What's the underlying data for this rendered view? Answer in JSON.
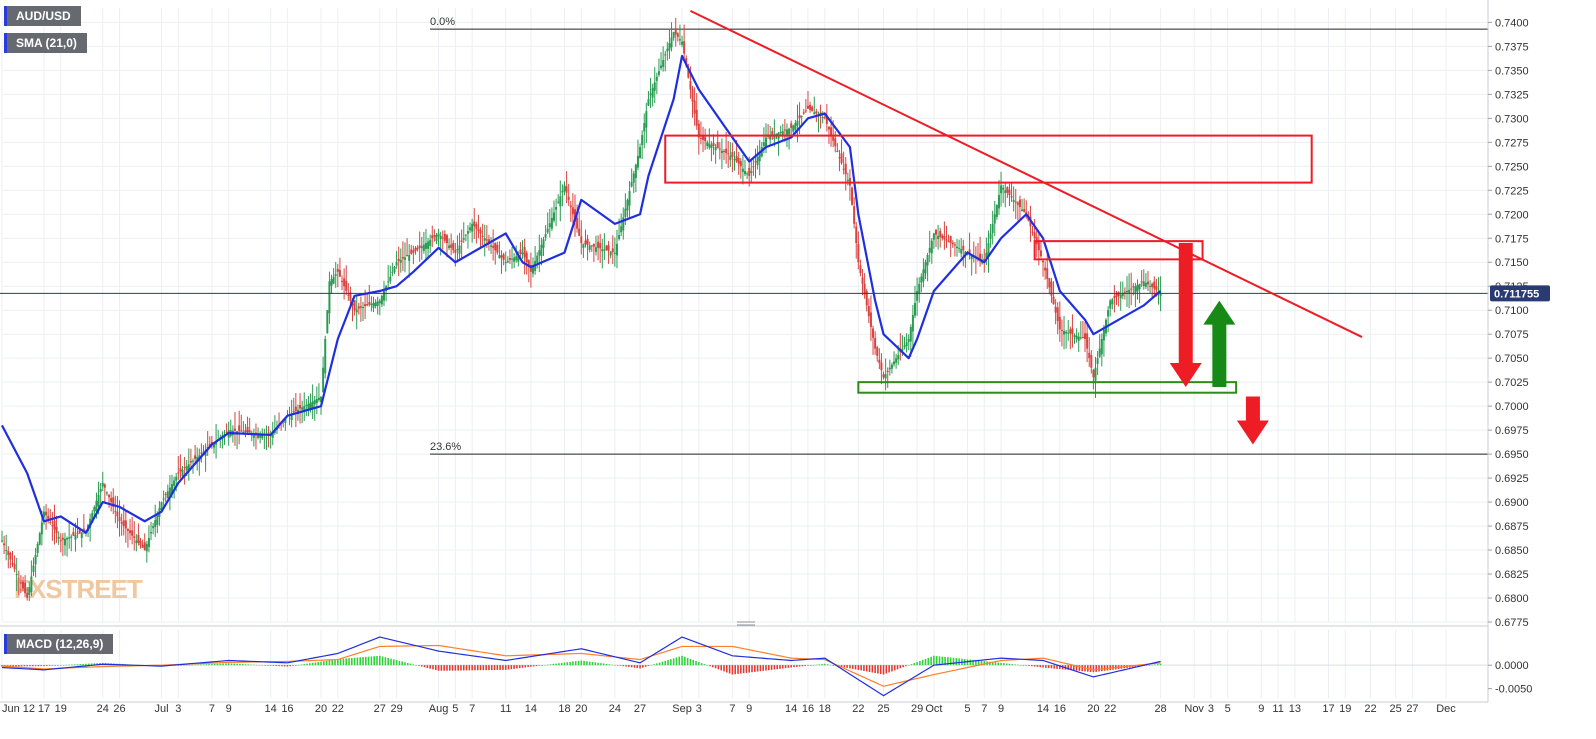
{
  "chart_data": {
    "type": "candlestick",
    "symbol": "AUD/USD",
    "indicator_label": "SMA (21,0)",
    "macd_label": "MACD (12,26,9)",
    "watermark": "FXSTREET",
    "current_price": "0.711755",
    "y_axis": {
      "range": [
        0.6775,
        0.7415
      ],
      "ticks": [
        "0.7400",
        "0.7375",
        "0.7350",
        "0.7325",
        "0.7300",
        "0.7275",
        "0.7250",
        "0.7225",
        "0.7200",
        "0.7175",
        "0.7150",
        "0.7125",
        "0.7100",
        "0.7075",
        "0.7050",
        "0.7025",
        "0.7000",
        "0.6975",
        "0.6950",
        "0.6925",
        "0.6900",
        "0.6875",
        "0.6850",
        "0.6825",
        "0.6800",
        "0.6775"
      ]
    },
    "macd_axis": {
      "range": [
        -0.007,
        0.0075
      ],
      "ticks": [
        {
          "label": "0.0000",
          "value": 0.0
        },
        {
          "label": "-0.0050",
          "value": -0.005
        }
      ]
    },
    "x_axis": {
      "start": "2020-06-12",
      "end": "2020-12-06",
      "labels": [
        {
          "text": "Jun 12",
          "date": "2020-06-12"
        },
        {
          "text": "17",
          "date": "2020-06-17"
        },
        {
          "text": "19",
          "date": "2020-06-19"
        },
        {
          "text": "24",
          "date": "2020-06-24"
        },
        {
          "text": "26",
          "date": "2020-06-26"
        },
        {
          "text": "Jul",
          "date": "2020-07-01"
        },
        {
          "text": "3",
          "date": "2020-07-03"
        },
        {
          "text": "7",
          "date": "2020-07-07"
        },
        {
          "text": "9",
          "date": "2020-07-09"
        },
        {
          "text": "14",
          "date": "2020-07-14"
        },
        {
          "text": "16",
          "date": "2020-07-16"
        },
        {
          "text": "20",
          "date": "2020-07-20"
        },
        {
          "text": "22",
          "date": "2020-07-22"
        },
        {
          "text": "27",
          "date": "2020-07-27"
        },
        {
          "text": "29",
          "date": "2020-07-29"
        },
        {
          "text": "Aug",
          "date": "2020-08-03"
        },
        {
          "text": "5",
          "date": "2020-08-05"
        },
        {
          "text": "7",
          "date": "2020-08-07"
        },
        {
          "text": "11",
          "date": "2020-08-11"
        },
        {
          "text": "14",
          "date": "2020-08-14"
        },
        {
          "text": "18",
          "date": "2020-08-18"
        },
        {
          "text": "20",
          "date": "2020-08-20"
        },
        {
          "text": "24",
          "date": "2020-08-24"
        },
        {
          "text": "27",
          "date": "2020-08-27"
        },
        {
          "text": "Sep",
          "date": "2020-09-01"
        },
        {
          "text": "3",
          "date": "2020-09-03"
        },
        {
          "text": "7",
          "date": "2020-09-07"
        },
        {
          "text": "9",
          "date": "2020-09-09"
        },
        {
          "text": "14",
          "date": "2020-09-14"
        },
        {
          "text": "16",
          "date": "2020-09-16"
        },
        {
          "text": "18",
          "date": "2020-09-18"
        },
        {
          "text": "22",
          "date": "2020-09-22"
        },
        {
          "text": "25",
          "date": "2020-09-25"
        },
        {
          "text": "29",
          "date": "2020-09-29"
        },
        {
          "text": "Oct",
          "date": "2020-10-01"
        },
        {
          "text": "5",
          "date": "2020-10-05"
        },
        {
          "text": "7",
          "date": "2020-10-07"
        },
        {
          "text": "9",
          "date": "2020-10-09"
        },
        {
          "text": "14",
          "date": "2020-10-14"
        },
        {
          "text": "16",
          "date": "2020-10-16"
        },
        {
          "text": "20",
          "date": "2020-10-20"
        },
        {
          "text": "22",
          "date": "2020-10-22"
        },
        {
          "text": "28",
          "date": "2020-10-28"
        },
        {
          "text": "Nov",
          "date": "2020-11-01"
        },
        {
          "text": "3",
          "date": "2020-11-03"
        },
        {
          "text": "5",
          "date": "2020-11-05"
        },
        {
          "text": "9",
          "date": "2020-11-09"
        },
        {
          "text": "11",
          "date": "2020-11-11"
        },
        {
          "text": "13",
          "date": "2020-11-13"
        },
        {
          "text": "17",
          "date": "2020-11-17"
        },
        {
          "text": "19",
          "date": "2020-11-19"
        },
        {
          "text": "22",
          "date": "2020-11-22"
        },
        {
          "text": "25",
          "date": "2020-11-25"
        },
        {
          "text": "27",
          "date": "2020-11-27"
        },
        {
          "text": "Dec",
          "date": "2020-12-01"
        }
      ]
    },
    "price_series": [
      {
        "date": "2020-06-12",
        "close": 0.686
      },
      {
        "date": "2020-06-15",
        "close": 0.68
      },
      {
        "date": "2020-06-17",
        "close": 0.689
      },
      {
        "date": "2020-06-19",
        "close": 0.686
      },
      {
        "date": "2020-06-22",
        "close": 0.687
      },
      {
        "date": "2020-06-24",
        "close": 0.692
      },
      {
        "date": "2020-06-26",
        "close": 0.688
      },
      {
        "date": "2020-06-29",
        "close": 0.685
      },
      {
        "date": "2020-07-01",
        "close": 0.69
      },
      {
        "date": "2020-07-03",
        "close": 0.693
      },
      {
        "date": "2020-07-07",
        "close": 0.696
      },
      {
        "date": "2020-07-09",
        "close": 0.6975
      },
      {
        "date": "2020-07-14",
        "close": 0.697
      },
      {
        "date": "2020-07-16",
        "close": 0.699
      },
      {
        "date": "2020-07-20",
        "close": 0.701
      },
      {
        "date": "2020-07-21",
        "close": 0.713
      },
      {
        "date": "2020-07-22",
        "close": 0.714
      },
      {
        "date": "2020-07-24",
        "close": 0.71
      },
      {
        "date": "2020-07-27",
        "close": 0.711
      },
      {
        "date": "2020-07-29",
        "close": 0.715
      },
      {
        "date": "2020-07-31",
        "close": 0.716
      },
      {
        "date": "2020-08-03",
        "close": 0.718
      },
      {
        "date": "2020-08-05",
        "close": 0.716
      },
      {
        "date": "2020-08-07",
        "close": 0.719
      },
      {
        "date": "2020-08-11",
        "close": 0.715
      },
      {
        "date": "2020-08-13",
        "close": 0.716
      },
      {
        "date": "2020-08-14",
        "close": 0.714
      },
      {
        "date": "2020-08-18",
        "close": 0.723
      },
      {
        "date": "2020-08-20",
        "close": 0.717
      },
      {
        "date": "2020-08-24",
        "close": 0.716
      },
      {
        "date": "2020-08-27",
        "close": 0.727
      },
      {
        "date": "2020-08-28",
        "close": 0.732
      },
      {
        "date": "2020-08-31",
        "close": 0.739
      },
      {
        "date": "2020-09-01",
        "close": 0.738
      },
      {
        "date": "2020-09-03",
        "close": 0.728
      },
      {
        "date": "2020-09-07",
        "close": 0.726
      },
      {
        "date": "2020-09-09",
        "close": 0.724
      },
      {
        "date": "2020-09-11",
        "close": 0.728
      },
      {
        "date": "2020-09-14",
        "close": 0.729
      },
      {
        "date": "2020-09-16",
        "close": 0.731
      },
      {
        "date": "2020-09-18",
        "close": 0.73
      },
      {
        "date": "2020-09-21",
        "close": 0.723
      },
      {
        "date": "2020-09-22",
        "close": 0.715
      },
      {
        "date": "2020-09-24",
        "close": 0.706
      },
      {
        "date": "2020-09-25",
        "close": 0.703
      },
      {
        "date": "2020-09-28",
        "close": 0.707
      },
      {
        "date": "2020-09-29",
        "close": 0.712
      },
      {
        "date": "2020-10-01",
        "close": 0.718
      },
      {
        "date": "2020-10-05",
        "close": 0.716
      },
      {
        "date": "2020-10-07",
        "close": 0.715
      },
      {
        "date": "2020-10-09",
        "close": 0.723
      },
      {
        "date": "2020-10-12",
        "close": 0.72
      },
      {
        "date": "2020-10-14",
        "close": 0.715
      },
      {
        "date": "2020-10-16",
        "close": 0.708
      },
      {
        "date": "2020-10-19",
        "close": 0.707
      },
      {
        "date": "2020-10-20",
        "close": 0.703
      },
      {
        "date": "2020-10-22",
        "close": 0.711
      },
      {
        "date": "2020-10-26",
        "close": 0.713
      },
      {
        "date": "2020-10-28",
        "close": 0.7118
      }
    ],
    "sma_series": [
      {
        "date": "2020-06-12",
        "value": 0.698
      },
      {
        "date": "2020-06-15",
        "value": 0.693
      },
      {
        "date": "2020-06-17",
        "value": 0.688
      },
      {
        "date": "2020-06-19",
        "value": 0.6885
      },
      {
        "date": "2020-06-22",
        "value": 0.6868
      },
      {
        "date": "2020-06-24",
        "value": 0.69
      },
      {
        "date": "2020-06-26",
        "value": 0.6895
      },
      {
        "date": "2020-06-29",
        "value": 0.688
      },
      {
        "date": "2020-07-01",
        "value": 0.689
      },
      {
        "date": "2020-07-03",
        "value": 0.692
      },
      {
        "date": "2020-07-07",
        "value": 0.696
      },
      {
        "date": "2020-07-09",
        "value": 0.6972
      },
      {
        "date": "2020-07-14",
        "value": 0.697
      },
      {
        "date": "2020-07-16",
        "value": 0.699
      },
      {
        "date": "2020-07-20",
        "value": 0.7
      },
      {
        "date": "2020-07-22",
        "value": 0.707
      },
      {
        "date": "2020-07-24",
        "value": 0.7115
      },
      {
        "date": "2020-07-27",
        "value": 0.712
      },
      {
        "date": "2020-07-29",
        "value": 0.7125
      },
      {
        "date": "2020-07-31",
        "value": 0.714
      },
      {
        "date": "2020-08-03",
        "value": 0.7165
      },
      {
        "date": "2020-08-05",
        "value": 0.715
      },
      {
        "date": "2020-08-07",
        "value": 0.716
      },
      {
        "date": "2020-08-11",
        "value": 0.718
      },
      {
        "date": "2020-08-13",
        "value": 0.715
      },
      {
        "date": "2020-08-14",
        "value": 0.7145
      },
      {
        "date": "2020-08-18",
        "value": 0.716
      },
      {
        "date": "2020-08-20",
        "value": 0.7215
      },
      {
        "date": "2020-08-24",
        "value": 0.719
      },
      {
        "date": "2020-08-27",
        "value": 0.72
      },
      {
        "date": "2020-08-28",
        "value": 0.724
      },
      {
        "date": "2020-08-31",
        "value": 0.732
      },
      {
        "date": "2020-09-01",
        "value": 0.7365
      },
      {
        "date": "2020-09-03",
        "value": 0.733
      },
      {
        "date": "2020-09-07",
        "value": 0.728
      },
      {
        "date": "2020-09-09",
        "value": 0.7255
      },
      {
        "date": "2020-09-11",
        "value": 0.727
      },
      {
        "date": "2020-09-14",
        "value": 0.728
      },
      {
        "date": "2020-09-16",
        "value": 0.73
      },
      {
        "date": "2020-09-18",
        "value": 0.7305
      },
      {
        "date": "2020-09-21",
        "value": 0.727
      },
      {
        "date": "2020-09-22",
        "value": 0.72
      },
      {
        "date": "2020-09-24",
        "value": 0.711
      },
      {
        "date": "2020-09-25",
        "value": 0.7075
      },
      {
        "date": "2020-09-28",
        "value": 0.705
      },
      {
        "date": "2020-09-29",
        "value": 0.707
      },
      {
        "date": "2020-10-01",
        "value": 0.712
      },
      {
        "date": "2020-10-05",
        "value": 0.716
      },
      {
        "date": "2020-10-07",
        "value": 0.715
      },
      {
        "date": "2020-10-09",
        "value": 0.7175
      },
      {
        "date": "2020-10-12",
        "value": 0.72
      },
      {
        "date": "2020-10-14",
        "value": 0.7175
      },
      {
        "date": "2020-10-16",
        "value": 0.712
      },
      {
        "date": "2020-10-19",
        "value": 0.709
      },
      {
        "date": "2020-10-20",
        "value": 0.7075
      },
      {
        "date": "2020-10-22",
        "value": 0.7085
      },
      {
        "date": "2020-10-26",
        "value": 0.7105
      },
      {
        "date": "2020-10-28",
        "value": 0.712
      }
    ],
    "macd_series": [
      {
        "date": "2020-06-12",
        "macd": -0.0005,
        "signal": -0.0002
      },
      {
        "date": "2020-06-17",
        "macd": -0.001,
        "signal": -0.0008
      },
      {
        "date": "2020-06-24",
        "macd": 0.0002,
        "signal": -0.0003
      },
      {
        "date": "2020-07-01",
        "macd": -0.0002,
        "signal": 0.0
      },
      {
        "date": "2020-07-09",
        "macd": 0.001,
        "signal": 0.0006
      },
      {
        "date": "2020-07-16",
        "macd": 0.0005,
        "signal": 0.0008
      },
      {
        "date": "2020-07-22",
        "macd": 0.0025,
        "signal": 0.0012
      },
      {
        "date": "2020-07-27",
        "macd": 0.006,
        "signal": 0.004
      },
      {
        "date": "2020-08-03",
        "macd": 0.003,
        "signal": 0.0042
      },
      {
        "date": "2020-08-11",
        "macd": 0.001,
        "signal": 0.002
      },
      {
        "date": "2020-08-20",
        "macd": 0.0035,
        "signal": 0.0025
      },
      {
        "date": "2020-08-27",
        "macd": 0.0005,
        "signal": 0.0012
      },
      {
        "date": "2020-09-01",
        "macd": 0.006,
        "signal": 0.004
      },
      {
        "date": "2020-09-07",
        "macd": 0.002,
        "signal": 0.004
      },
      {
        "date": "2020-09-14",
        "macd": 0.001,
        "signal": 0.0015
      },
      {
        "date": "2020-09-18",
        "macd": 0.0015,
        "signal": 0.0012
      },
      {
        "date": "2020-09-25",
        "macd": -0.0065,
        "signal": -0.0045
      },
      {
        "date": "2020-10-01",
        "macd": 0.0,
        "signal": -0.002
      },
      {
        "date": "2020-10-09",
        "macd": 0.0015,
        "signal": 0.001
      },
      {
        "date": "2020-10-14",
        "macd": 0.001,
        "signal": 0.0015
      },
      {
        "date": "2020-10-20",
        "macd": -0.0025,
        "signal": -0.001
      },
      {
        "date": "2020-10-28",
        "macd": 0.0008,
        "signal": 0.0005
      }
    ],
    "fibonacci_levels": [
      {
        "label": "0.0%",
        "value": 0.7393
      },
      {
        "label": "23.6%",
        "value": 0.695
      }
    ],
    "trendline": {
      "start": {
        "date": "2020-09-02",
        "value": 0.7412
      },
      "end": {
        "date": "2020-11-21",
        "value": 0.7072
      }
    },
    "zones": [
      {
        "color": "#ee1c25",
        "from": {
          "date": "2020-08-30",
          "value": 0.7282
        },
        "to": {
          "date": "2020-11-15",
          "value": 0.7233
        }
      },
      {
        "color": "#ee1c25",
        "from": {
          "date": "2020-10-13",
          "value": 0.7172
        },
        "to": {
          "date": "2020-11-02",
          "value": 0.7153
        }
      },
      {
        "color": "#2e8b14",
        "from": {
          "date": "2020-09-22",
          "value": 0.7025
        },
        "to": {
          "date": "2020-11-06",
          "value": 0.7014
        }
      }
    ],
    "arrows": [
      {
        "direction": "down",
        "color": "#ee1c25",
        "date": "2020-10-31",
        "from": 0.717,
        "to": 0.702
      },
      {
        "direction": "up",
        "color": "#168a14",
        "date": "2020-11-04",
        "from": 0.702,
        "to": 0.711
      },
      {
        "direction": "down",
        "color": "#ee1c25",
        "date": "2020-11-08",
        "from": 0.701,
        "to": 0.696
      }
    ],
    "colors": {
      "sma": "#1f2fe0",
      "trendline": "#ee1c25",
      "macd_line": "#1f2fe0",
      "signal_line": "#ff7f2a",
      "bull": "#2a9b52",
      "bear": "#d8433f",
      "price_tag": "#2a3a72"
    }
  }
}
